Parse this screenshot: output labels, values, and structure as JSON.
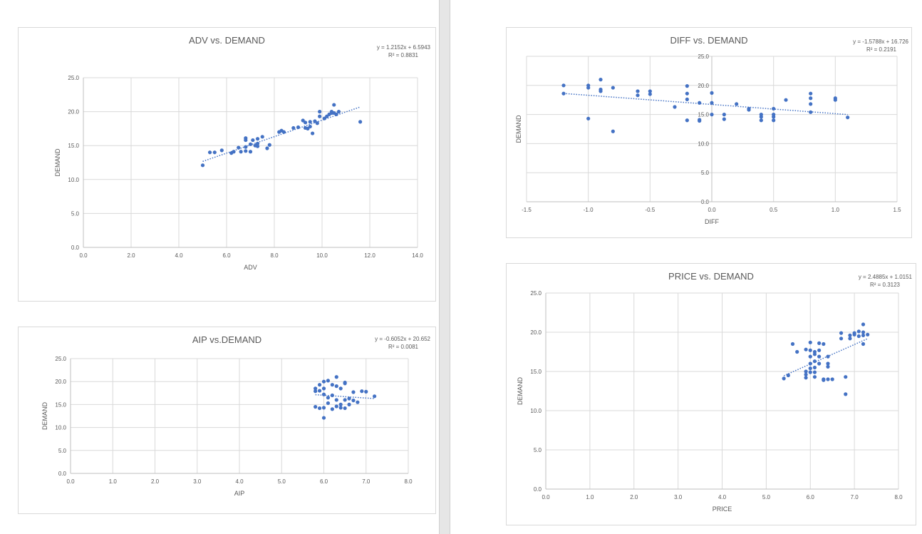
{
  "colors": {
    "marker": "#4472c4",
    "grid": "#d9d9d9",
    "axis": "#bfbfbf",
    "text": "#595959"
  },
  "chart_data": [
    {
      "id": "adv",
      "type": "scatter",
      "title": "ADV vs. DEMAND",
      "xlabel": "ADV",
      "ylabel": "DEMAND",
      "xlim": [
        0,
        14
      ],
      "ylim": [
        0,
        25
      ],
      "xticks": [
        "0.0",
        "2.0",
        "4.0",
        "6.0",
        "8.0",
        "10.0",
        "12.0",
        "14.0"
      ],
      "yticks": [
        "0.0",
        "5.0",
        "10.0",
        "15.0",
        "20.0",
        "25.0"
      ],
      "grid": true,
      "trendline": {
        "type": "linear",
        "slope": 1.2152,
        "intercept": 6.5943,
        "equation": "y = 1.2152x + 6.5943",
        "r2": "R² = 0.8831"
      },
      "points": [
        [
          5.0,
          12.1
        ],
        [
          5.3,
          14.0
        ],
        [
          5.5,
          14.0
        ],
        [
          5.8,
          14.3
        ],
        [
          6.2,
          13.9
        ],
        [
          6.3,
          14.1
        ],
        [
          6.5,
          14.7
        ],
        [
          6.6,
          14.1
        ],
        [
          6.8,
          14.2
        ],
        [
          6.8,
          14.8
        ],
        [
          6.8,
          15.8
        ],
        [
          6.8,
          16.1
        ],
        [
          7.0,
          14.1
        ],
        [
          7.0,
          15.2
        ],
        [
          7.1,
          15.8
        ],
        [
          7.2,
          15.0
        ],
        [
          7.3,
          14.9
        ],
        [
          7.3,
          15.3
        ],
        [
          7.3,
          16.0
        ],
        [
          7.5,
          16.3
        ],
        [
          7.7,
          14.6
        ],
        [
          7.8,
          15.1
        ],
        [
          8.2,
          17.0
        ],
        [
          8.3,
          17.2
        ],
        [
          8.4,
          17.0
        ],
        [
          8.8,
          17.6
        ],
        [
          9.0,
          17.7
        ],
        [
          9.2,
          18.7
        ],
        [
          9.3,
          17.6
        ],
        [
          9.3,
          18.4
        ],
        [
          9.4,
          17.5
        ],
        [
          9.5,
          17.8
        ],
        [
          9.5,
          18.5
        ],
        [
          9.6,
          16.8
        ],
        [
          9.7,
          18.6
        ],
        [
          9.8,
          18.3
        ],
        [
          9.9,
          19.3
        ],
        [
          9.9,
          20.0
        ],
        [
          10.1,
          19.0
        ],
        [
          10.2,
          19.3
        ],
        [
          10.3,
          19.6
        ],
        [
          10.4,
          19.8
        ],
        [
          10.4,
          20.0
        ],
        [
          10.5,
          21.0
        ],
        [
          10.5,
          19.8
        ],
        [
          10.6,
          19.6
        ],
        [
          10.7,
          20.0
        ],
        [
          11.6,
          18.5
        ]
      ]
    },
    {
      "id": "aip",
      "type": "scatter",
      "title": "AIP vs.DEMAND",
      "xlabel": "AIP",
      "ylabel": "DEMAND",
      "xlim": [
        0,
        8
      ],
      "ylim": [
        0,
        25
      ],
      "xticks": [
        "0.0",
        "1.0",
        "2.0",
        "3.0",
        "4.0",
        "5.0",
        "6.0",
        "7.0",
        "8.0"
      ],
      "yticks": [
        "0.0",
        "5.0",
        "10.0",
        "15.0",
        "20.0",
        "25.0"
      ],
      "grid": true,
      "trendline": {
        "type": "linear",
        "slope": -0.6052,
        "intercept": 20.652,
        "equation": "y = -0.6052x + 20.652",
        "r2": "R² = 0.0081"
      },
      "points": [
        [
          5.8,
          18.5
        ],
        [
          5.8,
          17.9
        ],
        [
          5.8,
          14.5
        ],
        [
          5.9,
          14.2
        ],
        [
          5.9,
          18.0
        ],
        [
          5.9,
          19.3
        ],
        [
          6.0,
          20.0
        ],
        [
          6.0,
          18.5
        ],
        [
          6.0,
          17.2
        ],
        [
          6.0,
          14.3
        ],
        [
          6.0,
          12.1
        ],
        [
          6.1,
          20.2
        ],
        [
          6.1,
          16.5
        ],
        [
          6.1,
          15.3
        ],
        [
          6.2,
          17.0
        ],
        [
          6.2,
          19.3
        ],
        [
          6.2,
          14.0
        ],
        [
          6.3,
          21.0
        ],
        [
          6.3,
          19.0
        ],
        [
          6.3,
          16.0
        ],
        [
          6.3,
          14.6
        ],
        [
          6.4,
          18.5
        ],
        [
          6.4,
          15.0
        ],
        [
          6.4,
          14.3
        ],
        [
          6.5,
          19.8
        ],
        [
          6.5,
          19.6
        ],
        [
          6.5,
          16.0
        ],
        [
          6.5,
          14.2
        ],
        [
          6.6,
          16.3
        ],
        [
          6.6,
          15.0
        ],
        [
          6.7,
          17.7
        ],
        [
          6.7,
          15.9
        ],
        [
          6.8,
          15.5
        ],
        [
          6.9,
          17.9
        ],
        [
          7.0,
          17.8
        ],
        [
          7.2,
          16.8
        ]
      ]
    },
    {
      "id": "diff",
      "type": "scatter",
      "title": "DIFF vs. DEMAND",
      "xlabel": "DIFF",
      "ylabel": "DEMAND",
      "xlim": [
        -1.5,
        1.5
      ],
      "ylim": [
        0,
        25
      ],
      "xticks": [
        "-1.5",
        "-1.0",
        "-0.5",
        "0.0",
        "0.5",
        "1.0",
        "1.5"
      ],
      "yticks": [
        "0.0",
        "5.0",
        "10.0",
        "15.0",
        "20.0",
        "25.0"
      ],
      "grid": true,
      "trendline": {
        "type": "linear",
        "slope": -1.5788,
        "intercept": 16.726,
        "equation": "y = -1.5788x + 16.726",
        "r2": "R² = 0.2191"
      },
      "points": [
        [
          -1.2,
          20.0
        ],
        [
          -1.2,
          18.6
        ],
        [
          -1.0,
          20.0
        ],
        [
          -1.0,
          19.6
        ],
        [
          -1.0,
          14.3
        ],
        [
          -0.9,
          21.0
        ],
        [
          -0.9,
          19.3
        ],
        [
          -0.9,
          19.0
        ],
        [
          -0.8,
          19.6
        ],
        [
          -0.8,
          12.1
        ],
        [
          -0.6,
          19.0
        ],
        [
          -0.6,
          18.3
        ],
        [
          -0.5,
          19.0
        ],
        [
          -0.5,
          18.5
        ],
        [
          -0.3,
          16.3
        ],
        [
          -0.2,
          19.9
        ],
        [
          -0.2,
          18.6
        ],
        [
          -0.2,
          17.6
        ],
        [
          -0.2,
          14.0
        ],
        [
          -0.1,
          17.0
        ],
        [
          -0.1,
          14.1
        ],
        [
          -0.1,
          13.9
        ],
        [
          0.0,
          18.7
        ],
        [
          0.0,
          17.0
        ],
        [
          0.0,
          15.0
        ],
        [
          0.1,
          15.0
        ],
        [
          0.1,
          14.2
        ],
        [
          0.2,
          16.8
        ],
        [
          0.3,
          16.0
        ],
        [
          0.3,
          15.8
        ],
        [
          0.4,
          15.0
        ],
        [
          0.4,
          14.6
        ],
        [
          0.4,
          14.0
        ],
        [
          0.5,
          16.0
        ],
        [
          0.5,
          15.0
        ],
        [
          0.5,
          14.6
        ],
        [
          0.5,
          14.0
        ],
        [
          0.6,
          17.5
        ],
        [
          0.8,
          18.6
        ],
        [
          0.8,
          17.8
        ],
        [
          0.8,
          16.8
        ],
        [
          0.8,
          15.4
        ],
        [
          1.0,
          17.8
        ],
        [
          1.0,
          17.5
        ],
        [
          1.1,
          14.5
        ]
      ]
    },
    {
      "id": "price",
      "type": "scatter",
      "title": "PRICE vs. DEMAND",
      "xlabel": "PRICE",
      "ylabel": "DEMAND",
      "xlim": [
        0,
        8
      ],
      "ylim": [
        0,
        25
      ],
      "xticks": [
        "0.0",
        "1.0",
        "2.0",
        "3.0",
        "4.0",
        "5.0",
        "6.0",
        "7.0",
        "8.0"
      ],
      "yticks": [
        "0.0",
        "5.0",
        "10.0",
        "15.0",
        "20.0",
        "25.0"
      ],
      "grid": true,
      "trendline": {
        "type": "linear",
        "slope": 2.4885,
        "intercept": 1.0151,
        "equation": "y = 2.4885x + 1.0151",
        "r2": "R² = 0.3123"
      },
      "points": [
        [
          5.4,
          14.1
        ],
        [
          5.5,
          14.5
        ],
        [
          5.6,
          18.5
        ],
        [
          5.7,
          17.5
        ],
        [
          5.9,
          17.8
        ],
        [
          5.9,
          15.0
        ],
        [
          5.9,
          14.6
        ],
        [
          5.9,
          14.2
        ],
        [
          6.0,
          18.7
        ],
        [
          6.0,
          17.7
        ],
        [
          6.0,
          16.9
        ],
        [
          6.0,
          16.0
        ],
        [
          6.0,
          15.4
        ],
        [
          6.0,
          14.9
        ],
        [
          6.1,
          17.5
        ],
        [
          6.1,
          17.2
        ],
        [
          6.1,
          16.3
        ],
        [
          6.1,
          15.5
        ],
        [
          6.1,
          14.9
        ],
        [
          6.1,
          14.3
        ],
        [
          6.2,
          18.6
        ],
        [
          6.2,
          17.7
        ],
        [
          6.2,
          16.9
        ],
        [
          6.2,
          16.0
        ],
        [
          6.3,
          18.5
        ],
        [
          6.3,
          14.0
        ],
        [
          6.3,
          13.9
        ],
        [
          6.4,
          16.9
        ],
        [
          6.4,
          16.0
        ],
        [
          6.4,
          15.6
        ],
        [
          6.4,
          14.0
        ],
        [
          6.5,
          14.0
        ],
        [
          6.7,
          19.9
        ],
        [
          6.7,
          19.2
        ],
        [
          6.8,
          14.3
        ],
        [
          6.8,
          12.1
        ],
        [
          6.9,
          19.6
        ],
        [
          6.9,
          19.2
        ],
        [
          7.0,
          19.9
        ],
        [
          7.0,
          19.7
        ],
        [
          7.1,
          20.1
        ],
        [
          7.1,
          19.5
        ],
        [
          7.2,
          21.0
        ],
        [
          7.2,
          20.0
        ],
        [
          7.2,
          19.6
        ],
        [
          7.2,
          18.5
        ],
        [
          7.3,
          19.7
        ]
      ]
    }
  ]
}
